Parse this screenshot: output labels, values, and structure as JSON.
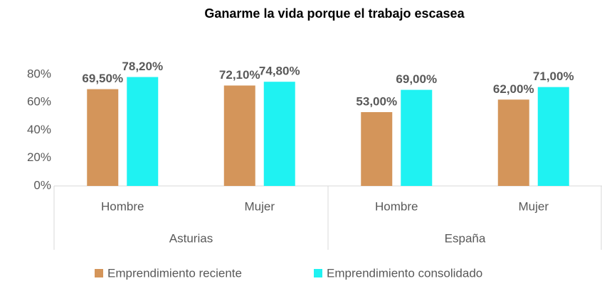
{
  "chart_data": {
    "type": "bar",
    "title": "Ganarme la vida porque el trabajo escasea",
    "categories": [
      "Hombre",
      "Mujer",
      "Hombre",
      "Mujer"
    ],
    "groups": [
      "Asturias",
      "España"
    ],
    "series": [
      {
        "name": "Emprendimiento reciente",
        "color": "#d4955a",
        "values": [
          69.5,
          72.1,
          53,
          62
        ],
        "value_labels": [
          "69,50%",
          "72,10%",
          "53,00%",
          "62,00%"
        ]
      },
      {
        "name": "Emprendimiento consolidado",
        "color": "#1ff2f2",
        "values": [
          78.2,
          74.8,
          69,
          71
        ],
        "value_labels": [
          "78,20%",
          "74,80%",
          "69,00%",
          "71,00%"
        ]
      }
    ],
    "ylim": [
      0,
      80
    ],
    "yticks": [
      {
        "value": 0,
        "label": "0%"
      },
      {
        "value": 20,
        "label": "20%"
      },
      {
        "value": 40,
        "label": "40%"
      },
      {
        "value": 60,
        "label": "60%"
      },
      {
        "value": 80,
        "label": "80%"
      }
    ],
    "grid": false,
    "legend": "bottom"
  }
}
